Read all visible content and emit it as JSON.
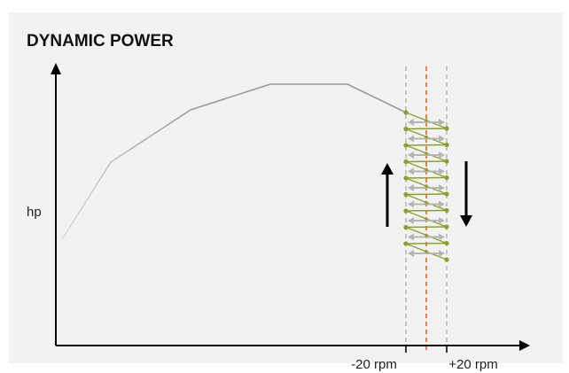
{
  "title": "DYNAMIC POWER",
  "axes": {
    "y_label": "hp",
    "x_tick_left": "-20 rpm",
    "x_tick_right": "+20 rpm"
  },
  "colors": {
    "panel": "#f2f2f2",
    "curve": "#9a9a9a",
    "curve_faint": "#dcdcdc",
    "center_line": "#e8733a",
    "bound_lines": "#b8b8b8",
    "oscillation": "#8fa02a",
    "arrows": "#b5b5b5",
    "axis": "#000000"
  },
  "icons": {
    "up_arrow": "arrow-up-icon",
    "down_arrow": "arrow-down-icon"
  }
}
